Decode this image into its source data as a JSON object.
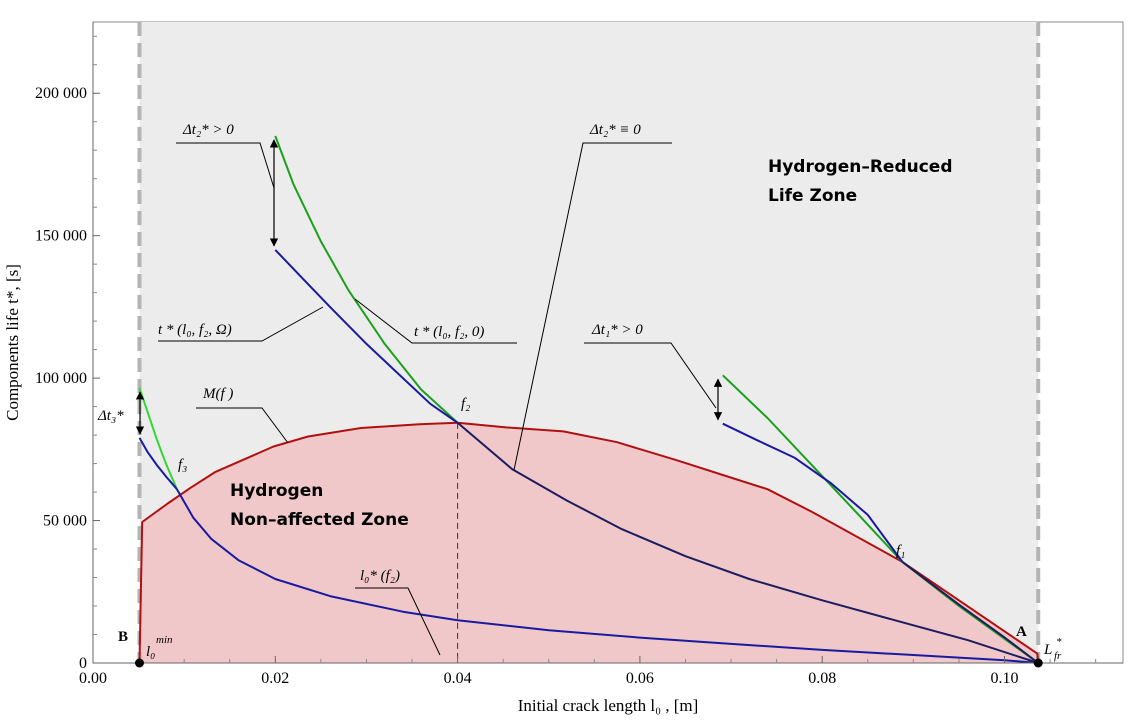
{
  "chart_data": {
    "type": "line",
    "title": "",
    "xlabel": "Initial crack length l₀ , [m]",
    "ylabel": "Components life t*, [s]",
    "xlim": [
      0,
      0.113
    ],
    "ylim": [
      0,
      225000
    ],
    "x_ticks": [
      {
        "value": 0.0,
        "label": "0.00"
      },
      {
        "value": 0.02,
        "label": "0.02"
      },
      {
        "value": 0.04,
        "label": "0.04"
      },
      {
        "value": 0.06,
        "label": "0.06"
      },
      {
        "value": 0.08,
        "label": "0.08"
      },
      {
        "value": 0.1,
        "label": "0.10"
      }
    ],
    "y_ticks": [
      {
        "value": 0,
        "label": "0"
      },
      {
        "value": 50000,
        "label": "50 000"
      },
      {
        "value": 100000,
        "label": "100 000"
      },
      {
        "value": 150000,
        "label": "150 000"
      },
      {
        "value": 200000,
        "label": "200 000"
      }
    ],
    "grid": false,
    "zone_boundaries": {
      "x_min": 0.0051,
      "x_max": 0.1037
    },
    "colors": {
      "zone_fill": "#ececec",
      "region_fill": "#f0c8ca",
      "m_curve": "#b01010",
      "green": "#1aa01a",
      "blue_h": "#1a1aa0",
      "dark": "#1c1c60",
      "boundary": "#b4b4b4"
    },
    "series": [
      {
        "name": "M(f)",
        "points": [
          [
            0.0051,
            0
          ],
          [
            0.0054,
            49500
          ],
          [
            0.0082,
            56000
          ],
          [
            0.0107,
            61500
          ],
          [
            0.0134,
            67000
          ],
          [
            0.0166,
            71500
          ],
          [
            0.0198,
            76000
          ],
          [
            0.0236,
            79500
          ],
          [
            0.0294,
            82500
          ],
          [
            0.0358,
            83800
          ],
          [
            0.04,
            84300
          ],
          [
            0.0453,
            82700
          ],
          [
            0.0516,
            81300
          ],
          [
            0.0575,
            77500
          ],
          [
            0.0642,
            71000
          ],
          [
            0.0691,
            66000
          ],
          [
            0.074,
            61000
          ],
          [
            0.0789,
            53000
          ],
          [
            0.0888,
            35500
          ],
          [
            0.1036,
            3300
          ],
          [
            0.1037,
            0
          ]
        ]
      },
      {
        "name": "t* (l0, f2, 0)",
        "points": [
          [
            0.02,
            185000
          ],
          [
            0.022,
            168000
          ],
          [
            0.025,
            148000
          ],
          [
            0.028,
            131000
          ],
          [
            0.032,
            112000
          ],
          [
            0.036,
            96000
          ],
          [
            0.04,
            84300
          ]
        ]
      },
      {
        "name": "t* (l0, f2, Ω)",
        "points": [
          [
            0.02,
            145000
          ],
          [
            0.023,
            135000
          ],
          [
            0.026,
            125000
          ],
          [
            0.03,
            112000
          ],
          [
            0.034,
            100000
          ],
          [
            0.037,
            91000
          ],
          [
            0.04,
            84300
          ]
        ]
      },
      {
        "name": "t*(l0,f2) continuation",
        "points": [
          [
            0.04,
            84300
          ],
          [
            0.046,
            68000
          ],
          [
            0.052,
            57000
          ],
          [
            0.058,
            47000
          ],
          [
            0.065,
            37500
          ],
          [
            0.072,
            29500
          ],
          [
            0.08,
            22000
          ],
          [
            0.088,
            15000
          ],
          [
            0.096,
            8000
          ],
          [
            0.1037,
            0
          ]
        ]
      },
      {
        "name": "f1 green",
        "points": [
          [
            0.0691,
            101000
          ],
          [
            0.074,
            86000
          ],
          [
            0.079,
            69000
          ],
          [
            0.084,
            52000
          ],
          [
            0.0888,
            35500
          ],
          [
            0.095,
            20000
          ],
          [
            0.1,
            8500
          ],
          [
            0.1037,
            0
          ]
        ]
      },
      {
        "name": "f1 blue",
        "points": [
          [
            0.0691,
            84000
          ],
          [
            0.073,
            78000
          ],
          [
            0.077,
            72000
          ],
          [
            0.081,
            63000
          ],
          [
            0.085,
            52000
          ],
          [
            0.0888,
            35500
          ]
        ]
      },
      {
        "name": "f3 green",
        "points": [
          [
            0.0051,
            96500
          ],
          [
            0.006,
            88000
          ],
          [
            0.007,
            78500
          ],
          [
            0.008,
            70000
          ],
          [
            0.0092,
            61000
          ]
        ]
      },
      {
        "name": "f3 blue",
        "points": [
          [
            0.0051,
            79000
          ],
          [
            0.006,
            74000
          ],
          [
            0.007,
            69500
          ],
          [
            0.008,
            65500
          ],
          [
            0.0092,
            61000
          ]
        ]
      },
      {
        "name": "l0*(f2) curve",
        "points": [
          [
            0.0092,
            61000
          ],
          [
            0.011,
            51000
          ],
          [
            0.013,
            43500
          ],
          [
            0.016,
            36000
          ],
          [
            0.02,
            29500
          ],
          [
            0.026,
            23500
          ],
          [
            0.034,
            18000
          ],
          [
            0.04,
            15000
          ],
          [
            0.05,
            11500
          ],
          [
            0.06,
            8900
          ],
          [
            0.07,
            6700
          ],
          [
            0.08,
            4600
          ],
          [
            0.09,
            2800
          ],
          [
            0.1,
            1000
          ],
          [
            0.1037,
            0
          ]
        ]
      }
    ],
    "annotations": {
      "zone_top": "Hydrogen–Reduced",
      "zone_bottom": "Life Zone",
      "region_top": "Hydrogen",
      "region_bottom": "Non–affected Zone",
      "dt2_pos": "Δt₂* > 0",
      "dt2_zero": "Δt₂* ≡ 0",
      "dt1_pos": "Δt₁* > 0",
      "dt3": "Δt₃*",
      "t_omega": "t * (l₀, f₂, Ω)",
      "t_zero": "t * (l₀, f₂, 0)",
      "m_f": "M(f )",
      "f1": "f₁",
      "f2": "f₂",
      "f3": "f₃",
      "l0_star": "l₀* (f₂)",
      "point_b": "B",
      "point_a": "A",
      "l0_min": "l₀",
      "l0_min_sup": "min",
      "l_fr": "L",
      "l_fr_sub": "fr",
      "l_fr_sup": "*"
    }
  }
}
